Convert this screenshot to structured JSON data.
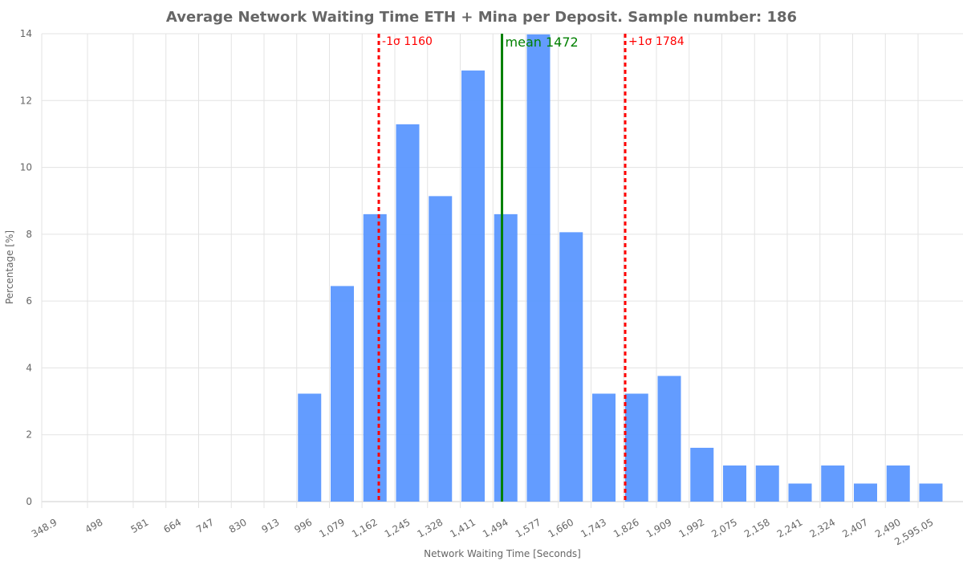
{
  "chart_data": {
    "type": "bar",
    "title": "Average Network Waiting Time ETH + Mina per Deposit. Sample number: 186",
    "xlabel": "Network Waiting Time [Seconds]",
    "ylabel": "Percentage [%]",
    "ylim": [
      0,
      14
    ],
    "yticks": [
      "0",
      "2",
      "4",
      "6",
      "8",
      "10",
      "12",
      "14"
    ],
    "xtick_labels": [
      "348.9",
      "498",
      "581",
      "664",
      "747",
      "830",
      "913",
      "996",
      "1,079",
      "1,162",
      "1,245",
      "1,328",
      "1,411",
      "1,494",
      "1,577",
      "1,660",
      "1,743",
      "1,826",
      "1,909",
      "1,992",
      "2,075",
      "2,158",
      "2,241",
      "2,324",
      "2,407",
      "2,490",
      "2,595.05"
    ],
    "grid": true,
    "bar_color": "#5b97ff",
    "categories": [
      "996",
      "1,079",
      "1,162",
      "1,245",
      "1,328",
      "1,411",
      "1,494",
      "1,577",
      "1,660",
      "1,743",
      "1,826",
      "1,909",
      "1,992",
      "2,075",
      "2,158",
      "2,241",
      "2,324",
      "2,407",
      "2,490",
      "2,595.05"
    ],
    "values": [
      3.23,
      6.45,
      8.6,
      11.29,
      9.14,
      12.9,
      8.6,
      13.98,
      8.06,
      3.23,
      3.23,
      3.76,
      1.61,
      1.08,
      1.08,
      0.54,
      1.08,
      0.54,
      1.08,
      0.54
    ],
    "reference_lines": [
      {
        "label": "-1σ 1160",
        "value": 1160,
        "color": "#ff0000",
        "style": "dashed"
      },
      {
        "label": "mean 1472",
        "value": 1472,
        "color": "#008000",
        "style": "solid"
      },
      {
        "label": "+1σ 1784",
        "value": 1784,
        "color": "#ff0000",
        "style": "dashed"
      }
    ]
  }
}
